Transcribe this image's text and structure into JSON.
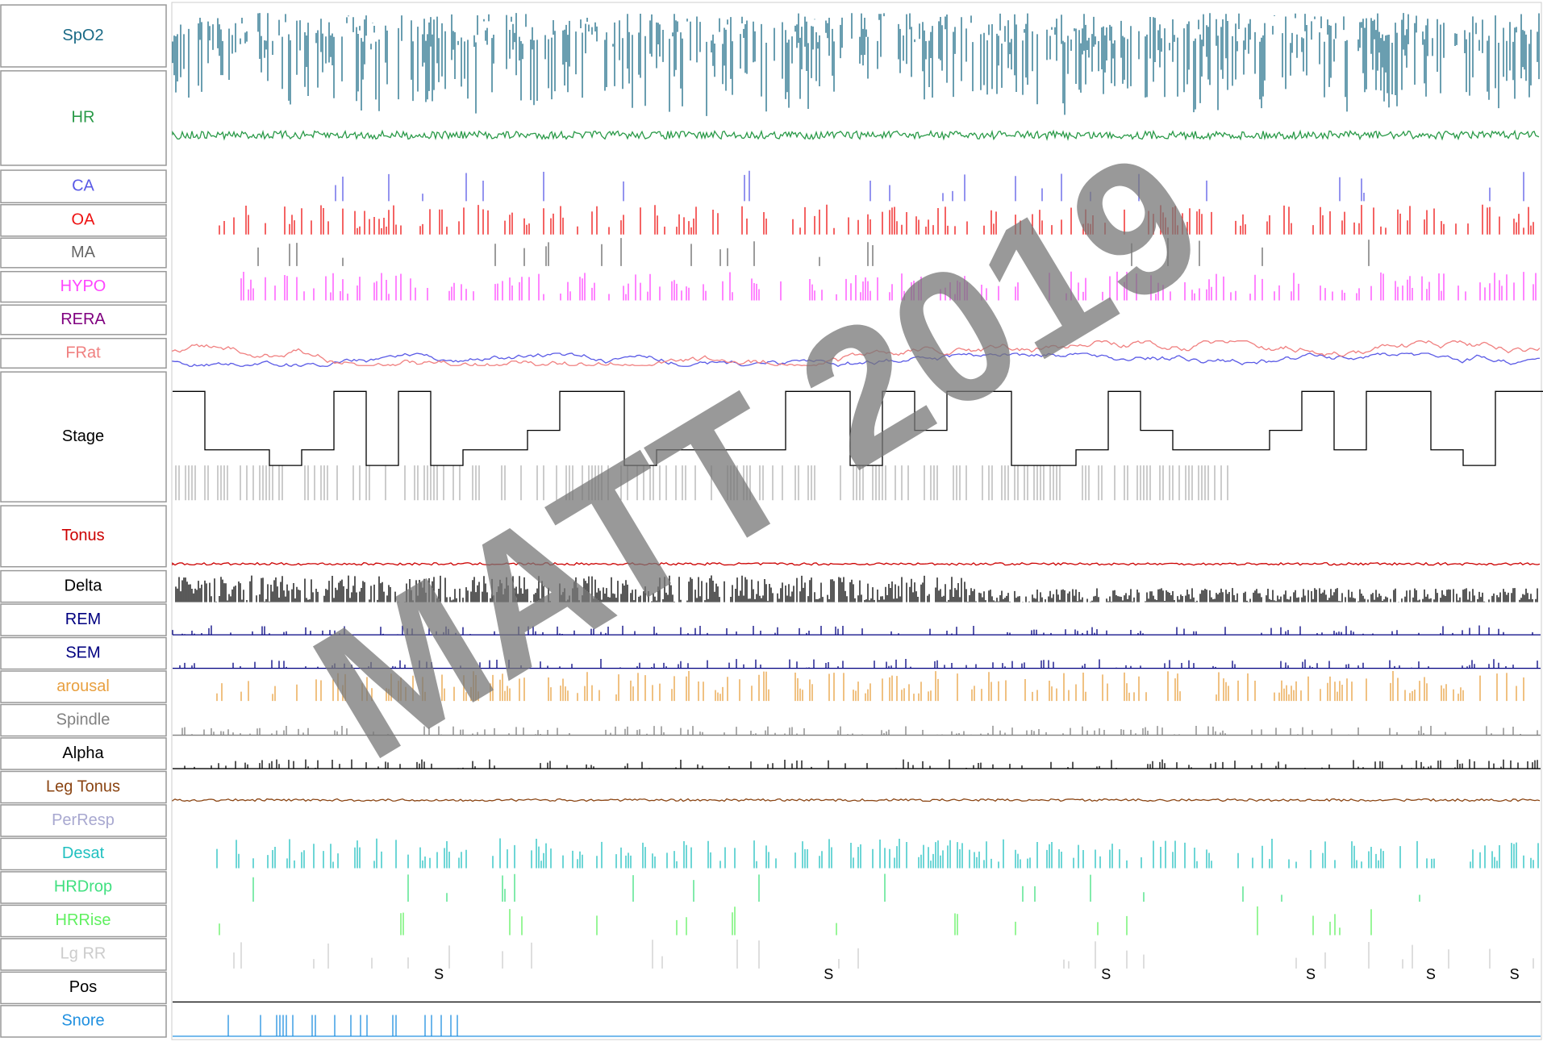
{
  "channels": [
    {
      "label": "SpO2",
      "color": "#1a6a86"
    },
    {
      "label": "HR",
      "color": "#2a9a48"
    },
    {
      "label": "CA",
      "color": "#5a5ae6"
    },
    {
      "label": "OA",
      "color": "#ee1111"
    },
    {
      "label": "MA",
      "color": "#666666"
    },
    {
      "label": "HYPO",
      "color": "#ff44ff"
    },
    {
      "label": "RERA",
      "color": "#800080"
    },
    {
      "label": "FRat",
      "color": "#f08080"
    },
    {
      "label": "Stage",
      "color": "#000000"
    },
    {
      "label": "Tonus",
      "color": "#cc0000"
    },
    {
      "label": "Delta",
      "color": "#000000"
    },
    {
      "label": "REM",
      "color": "#000080"
    },
    {
      "label": "SEM",
      "color": "#000080"
    },
    {
      "label": "arousal",
      "color": "#e8a040"
    },
    {
      "label": "Spindle",
      "color": "#808080"
    },
    {
      "label": "Alpha",
      "color": "#000000"
    },
    {
      "label": "Leg Tonus",
      "color": "#8b4513"
    },
    {
      "label": "PerResp",
      "color": "#a8a8d0"
    },
    {
      "label": "Desat",
      "color": "#20c0c0"
    },
    {
      "label": "HRDrop",
      "color": "#40e080"
    },
    {
      "label": "HRRise",
      "color": "#60f060"
    },
    {
      "label": "Lg RR",
      "color": "#cccccc"
    },
    {
      "label": "Pos",
      "color": "#000000"
    },
    {
      "label": "Snore",
      "color": "#2090e0"
    }
  ],
  "pos_markers": [
    "S",
    "S",
    "S",
    "S",
    "S",
    "S"
  ],
  "watermark": "MATT 2019"
}
